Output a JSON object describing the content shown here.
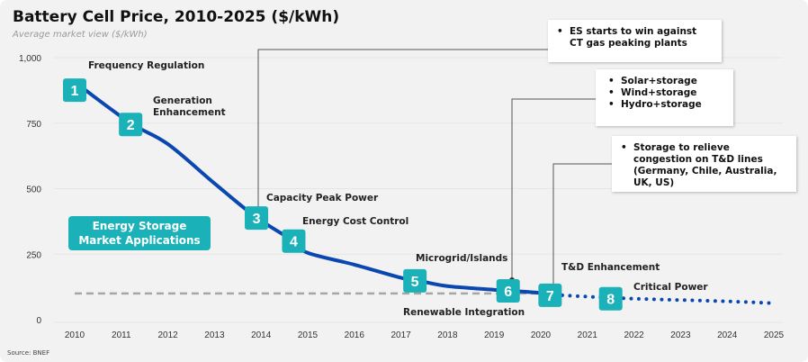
{
  "chart_data": {
    "type": "line",
    "title": "Battery Cell Price, 2010-2025 ($/kWh)",
    "subtitle": "Average market view ($/kWh)",
    "source": "Source: BNEF",
    "ylim": [
      0,
      1000
    ],
    "yticks": [
      0,
      250,
      500,
      750,
      1000
    ],
    "ytick_labels": [
      "0",
      "250",
      "500",
      "750",
      "1,000"
    ],
    "xticks": [
      "2010",
      "2011",
      "2012",
      "2013",
      "2014",
      "2015",
      "2016",
      "2017",
      "2018",
      "2019",
      "2020",
      "2021",
      "2022",
      "2023",
      "2024",
      "2025"
    ],
    "xlim": [
      2010,
      2025
    ],
    "grid": true,
    "series": [
      {
        "style": "solid",
        "color": "#0a47b0",
        "x": [
          2010.2,
          2011.2,
          2012,
          2013,
          2013.9,
          2014.7,
          2015,
          2016,
          2017,
          2017.4,
          2018,
          2019,
          2019.4,
          2020,
          2020.3
        ],
        "y": [
          880,
          750,
          670,
          520,
          390,
          300,
          255,
          210,
          160,
          148,
          128,
          114,
          110,
          102,
          95
        ]
      },
      {
        "style": "dotted",
        "color": "#0a47b0",
        "x": [
          2020.3,
          2021,
          2022,
          2023,
          2024,
          2025
        ],
        "y": [
          95,
          88,
          80,
          75,
          70,
          63
        ]
      },
      {
        "style": "dashed",
        "color": "#a6a6a6",
        "x": [
          2010,
          2020.2
        ],
        "y": [
          100,
          100
        ]
      }
    ],
    "markers": [
      {
        "n": "1",
        "x": 2010.0,
        "y": 876
      },
      {
        "n": "2",
        "x": 2011.2,
        "y": 745
      },
      {
        "n": "3",
        "x": 2013.9,
        "y": 388
      },
      {
        "n": "4",
        "x": 2014.7,
        "y": 300
      },
      {
        "n": "5",
        "x": 2017.3,
        "y": 148
      },
      {
        "n": "6",
        "x": 2019.3,
        "y": 110
      },
      {
        "n": "7",
        "x": 2020.2,
        "y": 93
      },
      {
        "n": "8",
        "x": 2021.5,
        "y": 80
      }
    ],
    "marker_color": "#1ab1b8",
    "annotations": {
      "m1": "Frequency Regulation",
      "m2_line1": "Generation",
      "m2_line2": "Enhancement",
      "m3": "Capacity Peak Power",
      "m4": "Energy Cost Control",
      "m5": "Microgrid/Islands",
      "m6": "Renewable Integration",
      "m7": "T&D Enhancement",
      "m8": "Critical Power",
      "legend_box_line1": "Energy Storage",
      "legend_box_line2": "Market Applications"
    },
    "callouts": {
      "a": [
        "ES starts to win against CT gas peaking plants"
      ],
      "b": [
        "Solar+storage",
        "Wind+storage",
        "Hydro+storage"
      ],
      "c": [
        "Storage to relieve congestion on T&D lines (Germany, Chile, Australia, UK, US)"
      ]
    }
  }
}
